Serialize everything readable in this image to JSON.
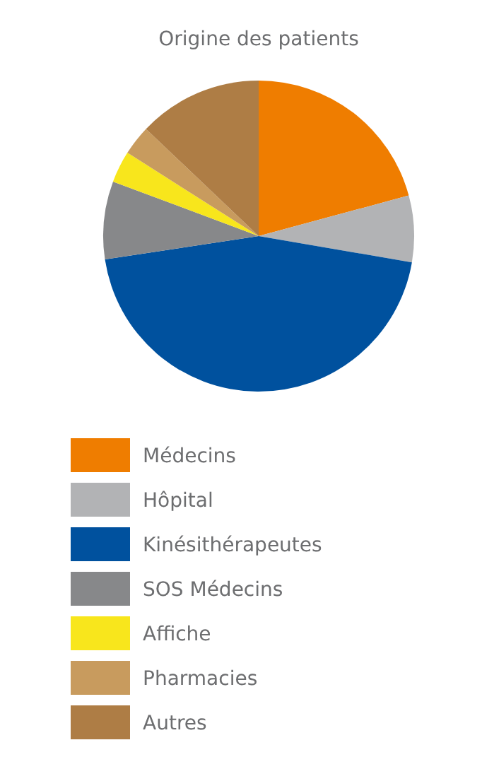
{
  "chart_data": {
    "type": "pie",
    "title": "Origine des patients",
    "categories": [
      "Médecins",
      "Hôpital",
      "Kinésithérapeutes",
      "SOS Médecins",
      "Affiche",
      "Pharmacies",
      "Autres"
    ],
    "values": [
      20.8,
      6.9,
      44.9,
      8.1,
      3.3,
      3.1,
      12.9
    ],
    "colors": [
      "#ef7d00",
      "#b2b3b5",
      "#00519e",
      "#87888a",
      "#f8e61c",
      "#c89b5e",
      "#ae7d45"
    ],
    "legend": "bottom"
  }
}
